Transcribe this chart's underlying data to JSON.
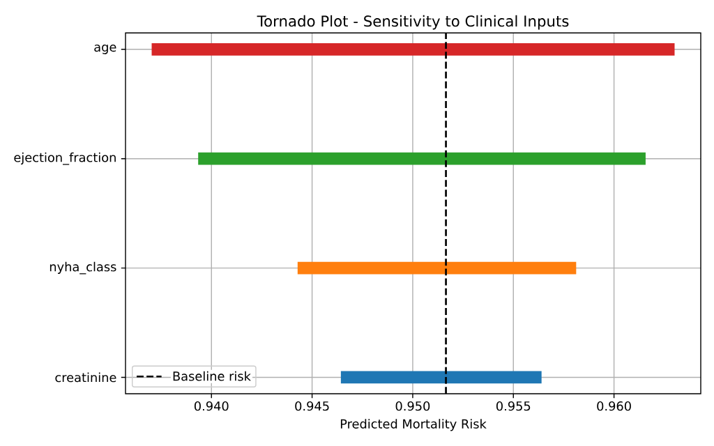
{
  "chart_data": {
    "type": "bar",
    "orientation": "horizontal",
    "title": "Tornado Plot - Sensitivity to Clinical Inputs",
    "xlabel": "Predicted Mortality Risk",
    "categories": [
      "age",
      "ejection_fraction",
      "nyha_class",
      "creatinine"
    ],
    "base": [
      0.93703,
      0.93934,
      0.94428,
      0.94643
    ],
    "values": [
      0.02598,
      0.02223,
      0.01384,
      0.00997
    ],
    "colors": [
      "#d62728",
      "#2ca02c",
      "#ff7f0e",
      "#1f77b4"
    ],
    "xlim": [
      0.93573,
      0.96431
    ],
    "xticks": [
      {
        "value": 0.94,
        "label": "0.940"
      },
      {
        "value": 0.945,
        "label": "0.945"
      },
      {
        "value": 0.95,
        "label": "0.950"
      },
      {
        "value": 0.955,
        "label": "0.955"
      },
      {
        "value": 0.96,
        "label": "0.960"
      }
    ],
    "ref_lines": [
      {
        "axis": "x",
        "value": 0.95165,
        "label": "Baseline risk",
        "color": "#000000",
        "line_style": "dashed"
      }
    ],
    "grid": true,
    "legend": "bottom left"
  }
}
